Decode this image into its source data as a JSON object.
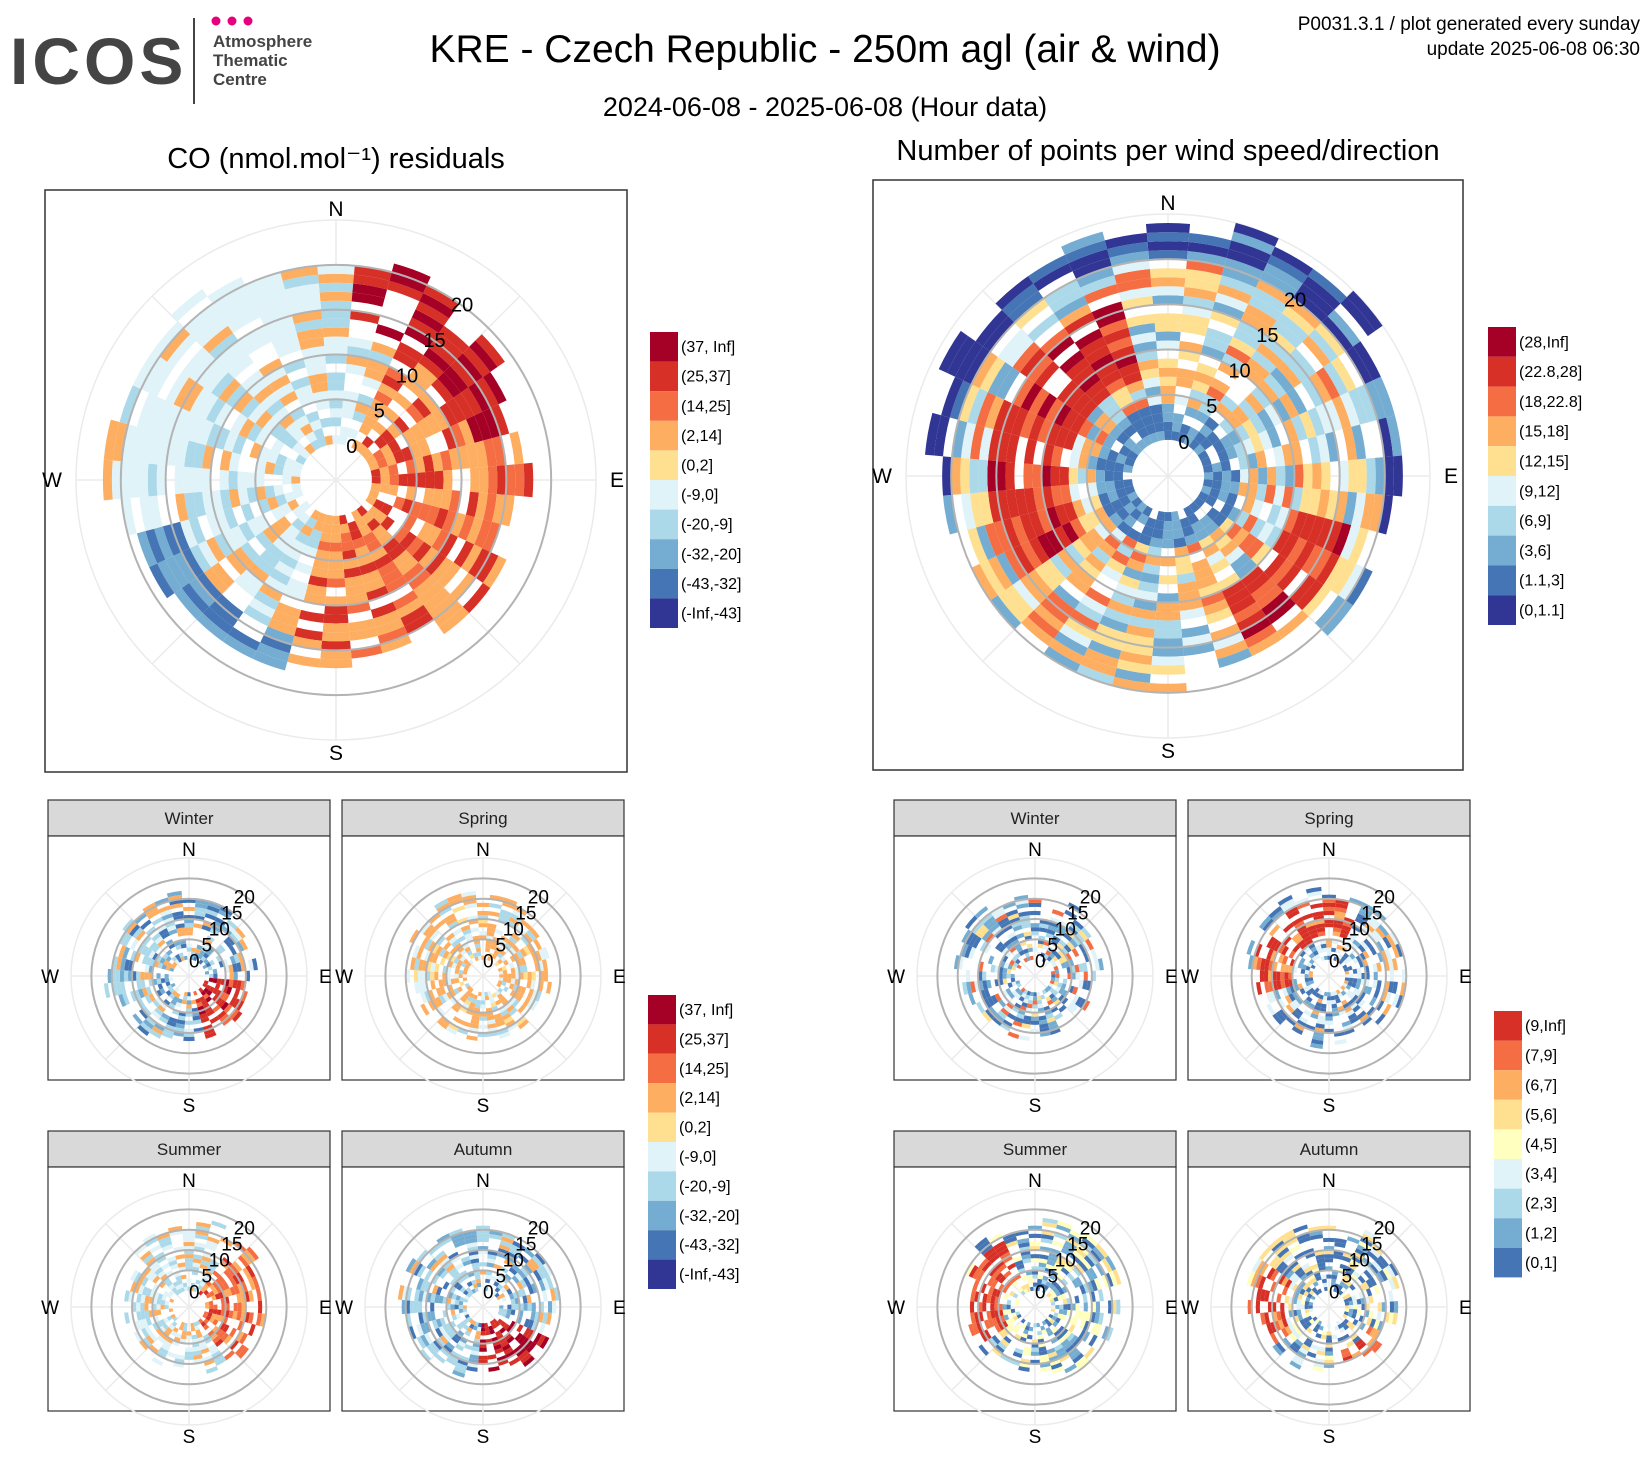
{
  "header": {
    "logo_text": "ICOS",
    "logo_sub_lines": [
      "Atmosphere",
      "Thematic",
      "Centre"
    ],
    "logo_dot_colors": [
      "#e6007e",
      "#e6007e",
      "#e6007e"
    ],
    "title": "KRE - Czech Republic - 250m agl (air & wind)",
    "subtitle": "2024-06-08 - 2025-06-08 (Hour data)",
    "meta_line1": "P0031.3.1 / plot generated every sunday",
    "meta_line2": "update  2025-06-08 06:30"
  },
  "compass": [
    "N",
    "E",
    "S",
    "W"
  ],
  "seasons": [
    "Winter",
    "Spring",
    "Summer",
    "Autumn"
  ],
  "chart_data": [
    {
      "id": "co-main",
      "type": "heatmap",
      "coordinate": "polar",
      "title": "CO (nmol.mol⁻¹) residuals",
      "radial_axis": "wind speed",
      "radial_ticks": [
        0,
        5,
        10,
        15,
        20
      ],
      "radial_range": [
        0,
        25
      ],
      "sectors": 36,
      "speed_bin_width": 1,
      "legend_labels": [
        "(37, Inf]",
        "(25,37]",
        "(14,25]",
        "(2,14]",
        "(0,2]",
        "(-9,0]",
        "(-20,-9]",
        "(-32,-20]",
        "(-43,-32]",
        "(-Inf,-43]"
      ],
      "legend_colors": [
        "#a50026",
        "#d73027",
        "#f46d43",
        "#fdae61",
        "#fee090",
        "#e0f3f8",
        "#abd9e9",
        "#74add1",
        "#4575b4",
        "#313695"
      ],
      "pattern": "co-annual"
    },
    {
      "id": "count-main",
      "type": "heatmap",
      "coordinate": "polar",
      "title": "Number of points per wind speed/direction",
      "radial_axis": "wind speed",
      "radial_ticks": [
        0,
        5,
        10,
        15,
        20
      ],
      "radial_range": [
        0,
        25
      ],
      "sectors": 36,
      "speed_bin_width": 1,
      "legend_labels": [
        "(28,Inf]",
        "(22.8,28]",
        "(18,22.8]",
        "(15,18]",
        "(12,15]",
        "(9,12]",
        "(6,9]",
        "(3,6]",
        "(1.1,3]",
        "(0,1.1]"
      ],
      "legend_colors": [
        "#a50026",
        "#d73027",
        "#f46d43",
        "#fdae61",
        "#fee090",
        "#e0f3f8",
        "#abd9e9",
        "#74add1",
        "#4575b4",
        "#313695"
      ],
      "pattern": "count-annual"
    },
    {
      "id": "co-seasonal",
      "type": "heatmap",
      "coordinate": "polar",
      "facets": [
        "Winter",
        "Spring",
        "Summer",
        "Autumn"
      ],
      "facet_patterns": [
        "co-winter",
        "co-spring",
        "co-summer",
        "co-autumn"
      ],
      "radial_ticks": [
        0,
        5,
        10,
        15,
        20
      ],
      "radial_range": [
        0,
        25
      ],
      "sectors": 36,
      "speed_bin_width": 1,
      "legend_labels": [
        "(37, Inf]",
        "(25,37]",
        "(14,25]",
        "(2,14]",
        "(0,2]",
        "(-9,0]",
        "(-20,-9]",
        "(-32,-20]",
        "(-43,-32]",
        "(-Inf,-43]"
      ],
      "legend_colors": [
        "#a50026",
        "#d73027",
        "#f46d43",
        "#fdae61",
        "#fee090",
        "#e0f3f8",
        "#abd9e9",
        "#74add1",
        "#4575b4",
        "#313695"
      ]
    },
    {
      "id": "count-seasonal",
      "type": "heatmap",
      "coordinate": "polar",
      "facets": [
        "Winter",
        "Spring",
        "Summer",
        "Autumn"
      ],
      "facet_patterns": [
        "count-winter",
        "count-spring",
        "count-summer",
        "count-autumn"
      ],
      "radial_ticks": [
        0,
        5,
        10,
        15,
        20
      ],
      "radial_range": [
        0,
        25
      ],
      "sectors": 36,
      "speed_bin_width": 1,
      "legend_labels": [
        "(9,Inf]",
        "(7,9]",
        "(6,7]",
        "(5,6]",
        "(4,5]",
        "(3,4]",
        "(2,3]",
        "(1,2]",
        "(0,1]"
      ],
      "legend_colors": [
        "#d73027",
        "#f46d43",
        "#fdae61",
        "#fee090",
        "#ffffbf",
        "#e0f3f8",
        "#abd9e9",
        "#74add1",
        "#4575b4"
      ]
    }
  ]
}
